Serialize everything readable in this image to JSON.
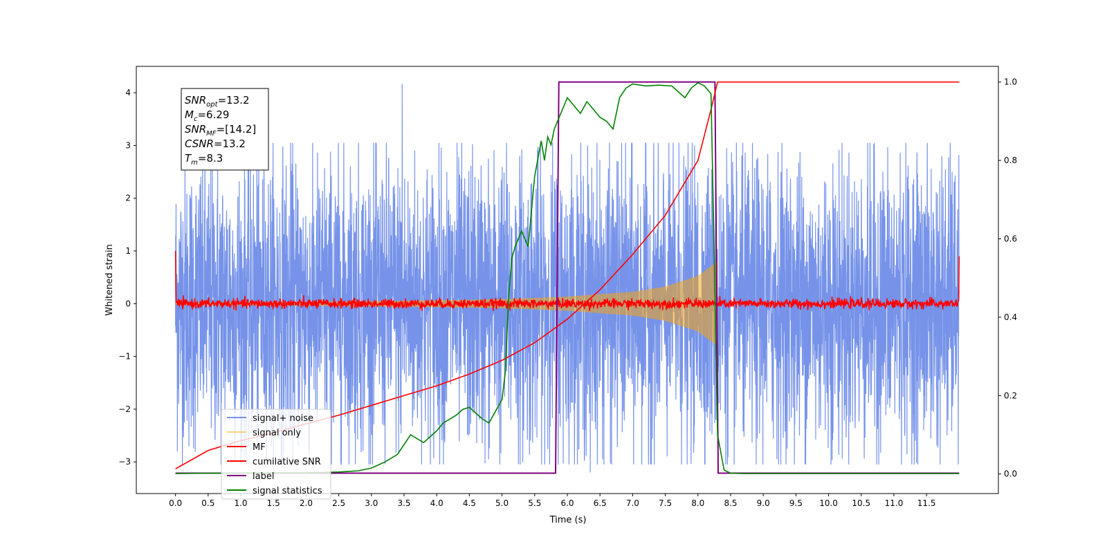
{
  "chart_data": {
    "type": "line",
    "xlabel": "Time (s)",
    "ylabel_left": "Whitened strain",
    "ylabel_right": "",
    "xlim": [
      -0.6,
      12.6
    ],
    "ylim_left": [
      -3.6,
      4.5
    ],
    "ylim_right": [
      -0.05,
      1.04
    ],
    "x_ticks": [
      0.0,
      0.5,
      1.0,
      1.5,
      2.0,
      2.5,
      3.0,
      3.5,
      4.0,
      4.5,
      5.0,
      5.5,
      6.0,
      6.5,
      7.0,
      7.5,
      8.0,
      8.5,
      9.0,
      9.5,
      10.0,
      10.5,
      11.0,
      11.5
    ],
    "x_tick_labels": [
      "0.0",
      "0.5",
      "1.0",
      "1.5",
      "2.0",
      "2.5",
      "3.0",
      "3.5",
      "4.0",
      "4.5",
      "5.0",
      "5.5",
      "6.0",
      "6.5",
      "7.0",
      "7.5",
      "8.0",
      "8.5",
      "9.0",
      "9.5",
      "10.0",
      "10.5",
      "11.0",
      "11.5"
    ],
    "y_ticks_left": [
      -3,
      -2,
      -1,
      0,
      1,
      2,
      3,
      4
    ],
    "y_tick_labels_left": [
      "−3",
      "−2",
      "−1",
      "0",
      "1",
      "2",
      "3",
      "4"
    ],
    "y_ticks_right": [
      0.0,
      0.2,
      0.4,
      0.6,
      0.8,
      1.0
    ],
    "y_tick_labels_right": [
      "0.0",
      "0.2",
      "0.4",
      "0.6",
      "0.8",
      "1.0"
    ],
    "grid": false,
    "legend_position": "lower-left",
    "annotation_box": {
      "position": "top-left",
      "lines": [
        {
          "symbol": "SNR",
          "sub": "opt",
          "value": "=13.2"
        },
        {
          "symbol": "M",
          "sub": "c",
          "value": "=6.29"
        },
        {
          "symbol": "SNR",
          "sub": "MF",
          "value": "=[14.2]"
        },
        {
          "symbol": "CSNR",
          "sub": "",
          "value": "=13.2"
        },
        {
          "symbol": "T",
          "sub": "m",
          "value": "=8.3"
        }
      ]
    },
    "series": [
      {
        "name": "signal+ noise",
        "axis": "left",
        "color": "#4169e1",
        "style": "noise band",
        "x_range": [
          0.0,
          12.0
        ],
        "typical_range": [
          -1.6,
          1.6
        ],
        "max_peak": 4.17,
        "min_peak": -3.2
      },
      {
        "name": "signal only",
        "axis": "left",
        "color": "#ffa500",
        "style": "chirp",
        "x_range": [
          0.0,
          8.3
        ],
        "amplitude": [
          [
            0.0,
            0.02
          ],
          [
            2.0,
            0.03
          ],
          [
            4.0,
            0.06
          ],
          [
            5.0,
            0.08
          ],
          [
            6.0,
            0.13
          ],
          [
            7.0,
            0.22
          ],
          [
            7.5,
            0.32
          ],
          [
            8.0,
            0.52
          ],
          [
            8.3,
            0.8
          ]
        ]
      },
      {
        "name": "MF",
        "axis": "left",
        "color": "#ff0000",
        "style": "noise band",
        "x_range": [
          0.0,
          12.0
        ],
        "typical_range": [
          -0.1,
          0.1
        ],
        "edge_values": [
          1.0,
          0.9
        ]
      },
      {
        "name": "cumilative SNR",
        "axis": "right",
        "color": "#ff0000",
        "x": [
          0.0,
          0.5,
          1.0,
          1.5,
          2.0,
          2.5,
          3.0,
          3.5,
          4.0,
          4.5,
          5.0,
          5.5,
          6.0,
          6.5,
          7.0,
          7.5,
          8.0,
          8.2,
          8.3,
          12.0
        ],
        "y": [
          0.013,
          0.06,
          0.085,
          0.105,
          0.128,
          0.15,
          0.175,
          0.2,
          0.225,
          0.255,
          0.29,
          0.335,
          0.395,
          0.47,
          0.56,
          0.66,
          0.8,
          0.93,
          1.0,
          1.0
        ]
      },
      {
        "name": "label",
        "axis": "right",
        "color": "#800080",
        "x": [
          0.0,
          5.82,
          5.87,
          8.26,
          8.31,
          12.0
        ],
        "y": [
          0.002,
          0.002,
          1.0,
          1.0,
          0.002,
          0.002
        ]
      },
      {
        "name": "signal statistics",
        "axis": "right",
        "color": "#008000",
        "x": [
          0.0,
          0.5,
          1.0,
          1.5,
          2.0,
          2.5,
          2.8,
          3.0,
          3.2,
          3.4,
          3.5,
          3.6,
          3.7,
          3.8,
          4.0,
          4.1,
          4.2,
          4.3,
          4.4,
          4.5,
          4.6,
          4.7,
          4.8,
          4.9,
          5.0,
          5.05,
          5.1,
          5.15,
          5.2,
          5.3,
          5.4,
          5.5,
          5.6,
          5.65,
          5.7,
          5.75,
          5.8,
          5.9,
          6.0,
          6.1,
          6.2,
          6.3,
          6.4,
          6.5,
          6.6,
          6.7,
          6.8,
          6.9,
          7.0,
          7.2,
          7.4,
          7.6,
          7.8,
          7.9,
          8.0,
          8.1,
          8.2,
          8.25,
          8.3,
          8.4,
          8.5,
          8.7,
          9.0,
          12.0
        ],
        "y": [
          0.001,
          0.002,
          0.002,
          0.003,
          0.003,
          0.005,
          0.008,
          0.015,
          0.03,
          0.05,
          0.075,
          0.1,
          0.09,
          0.08,
          0.11,
          0.13,
          0.14,
          0.15,
          0.165,
          0.17,
          0.155,
          0.14,
          0.13,
          0.16,
          0.19,
          0.26,
          0.45,
          0.55,
          0.58,
          0.62,
          0.58,
          0.76,
          0.85,
          0.8,
          0.86,
          0.84,
          0.88,
          0.92,
          0.96,
          0.94,
          0.92,
          0.95,
          0.93,
          0.91,
          0.9,
          0.88,
          0.96,
          0.985,
          0.995,
          0.99,
          0.992,
          0.99,
          0.96,
          0.985,
          0.998,
          0.99,
          0.97,
          0.55,
          0.1,
          0.01,
          0.002,
          0.001,
          0.001,
          0.001
        ]
      }
    ]
  }
}
